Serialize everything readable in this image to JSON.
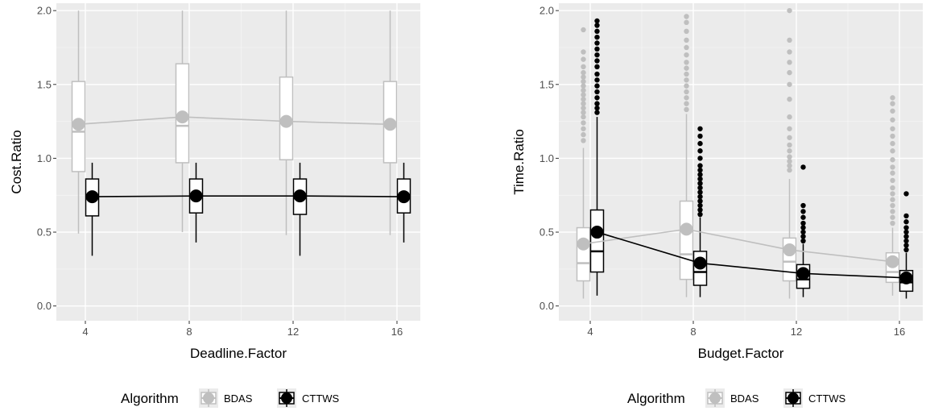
{
  "chart_data": [
    {
      "type": "box",
      "xlabel": "Deadline.Factor",
      "ylabel": "Cost.Ratio",
      "categories": [
        "4",
        "8",
        "12",
        "16"
      ],
      "ylim": [
        -0.1,
        2.05
      ],
      "yticks": [
        "0.0",
        "0.5",
        "1.0",
        "1.5",
        "2.0"
      ],
      "grid": true,
      "series": [
        {
          "name": "BDAS",
          "color": "#bfbfbf",
          "boxes": [
            {
              "min": 0.49,
              "q1": 0.91,
              "median": 1.18,
              "q3": 1.52,
              "max": 2.0,
              "mean": 1.23,
              "outliers": []
            },
            {
              "min": 0.5,
              "q1": 0.97,
              "median": 1.22,
              "q3": 1.64,
              "max": 2.0,
              "mean": 1.28,
              "outliers": []
            },
            {
              "min": 0.48,
              "q1": 0.99,
              "median": 1.24,
              "q3": 1.55,
              "max": 2.0,
              "mean": 1.25,
              "outliers": []
            },
            {
              "min": 0.48,
              "q1": 0.97,
              "median": 1.22,
              "q3": 1.52,
              "max": 2.0,
              "mean": 1.23,
              "outliers": []
            }
          ]
        },
        {
          "name": "CTTWS",
          "color": "#000000",
          "boxes": [
            {
              "min": 0.34,
              "q1": 0.61,
              "median": 0.73,
              "q3": 0.86,
              "max": 0.97,
              "mean": 0.74,
              "outliers": []
            },
            {
              "min": 0.43,
              "q1": 0.63,
              "median": 0.74,
              "q3": 0.86,
              "max": 0.97,
              "mean": 0.745,
              "outliers": []
            },
            {
              "min": 0.34,
              "q1": 0.62,
              "median": 0.73,
              "q3": 0.86,
              "max": 0.97,
              "mean": 0.745,
              "outliers": []
            },
            {
              "min": 0.43,
              "q1": 0.63,
              "median": 0.74,
              "q3": 0.86,
              "max": 0.97,
              "mean": 0.74,
              "outliers": []
            }
          ]
        }
      ]
    },
    {
      "type": "box",
      "xlabel": "Budget.Factor",
      "ylabel": "Time.Ratio",
      "categories": [
        "4",
        "8",
        "12",
        "16"
      ],
      "ylim": [
        -0.1,
        2.05
      ],
      "yticks": [
        "0.0",
        "0.5",
        "1.0",
        "1.5",
        "2.0"
      ],
      "grid": true,
      "series": [
        {
          "name": "BDAS",
          "color": "#bfbfbf",
          "boxes": [
            {
              "min": 0.05,
              "q1": 0.17,
              "median": 0.29,
              "q3": 0.53,
              "max": 1.07,
              "mean": 0.42,
              "outliers": [
                1.12,
                1.16,
                1.2,
                1.24,
                1.28,
                1.31,
                1.34,
                1.37,
                1.4,
                1.43,
                1.46,
                1.49,
                1.52,
                1.55,
                1.58,
                1.62,
                1.67,
                1.72,
                1.87
              ]
            },
            {
              "min": 0.06,
              "q1": 0.18,
              "median": 0.35,
              "q3": 0.71,
              "max": 1.3,
              "mean": 0.52,
              "outliers": [
                1.33,
                1.37,
                1.41,
                1.45,
                1.49,
                1.53,
                1.57,
                1.61,
                1.65,
                1.7,
                1.75,
                1.8,
                1.86,
                1.92,
                1.96
              ]
            },
            {
              "min": 0.05,
              "q1": 0.17,
              "median": 0.3,
              "q3": 0.46,
              "max": 0.86,
              "mean": 0.38,
              "outliers": [
                0.92,
                0.95,
                0.98,
                1.01,
                1.05,
                1.09,
                1.14,
                1.2,
                1.28,
                1.4,
                1.5,
                1.58,
                1.65,
                1.72,
                1.8,
                2.0
              ]
            },
            {
              "min": 0.07,
              "q1": 0.16,
              "median": 0.23,
              "q3": 0.36,
              "max": 0.53,
              "mean": 0.3,
              "outliers": [
                0.56,
                0.6,
                0.64,
                0.68,
                0.72,
                0.76,
                0.8,
                0.85,
                0.9,
                0.94,
                0.99,
                1.05,
                1.1,
                1.15,
                1.2,
                1.26,
                1.32,
                1.37,
                1.41
              ]
            }
          ]
        },
        {
          "name": "CTTWS",
          "color": "#000000",
          "boxes": [
            {
              "min": 0.07,
              "q1": 0.23,
              "median": 0.37,
              "q3": 0.65,
              "max": 1.28,
              "mean": 0.5,
              "outliers": [
                1.31,
                1.34,
                1.37,
                1.41,
                1.45,
                1.49,
                1.53,
                1.57,
                1.62,
                1.66,
                1.7,
                1.74,
                1.78,
                1.82,
                1.86,
                1.9,
                1.93
              ]
            },
            {
              "min": 0.06,
              "q1": 0.14,
              "median": 0.23,
              "q3": 0.37,
              "max": 0.6,
              "mean": 0.29,
              "outliers": [
                0.62,
                0.65,
                0.68,
                0.71,
                0.74,
                0.77,
                0.8,
                0.83,
                0.86,
                0.89,
                0.92,
                0.95,
                1.0,
                1.05,
                1.1,
                1.15,
                1.2
              ]
            },
            {
              "min": 0.06,
              "q1": 0.12,
              "median": 0.18,
              "q3": 0.28,
              "max": 0.42,
              "mean": 0.22,
              "outliers": [
                0.44,
                0.47,
                0.5,
                0.53,
                0.56,
                0.6,
                0.64,
                0.68,
                0.94
              ]
            },
            {
              "min": 0.05,
              "q1": 0.1,
              "median": 0.16,
              "q3": 0.24,
              "max": 0.36,
              "mean": 0.19,
              "outliers": [
                0.38,
                0.41,
                0.44,
                0.47,
                0.5,
                0.53,
                0.57,
                0.61,
                0.76
              ]
            }
          ]
        }
      ]
    }
  ],
  "legend": {
    "title": "Algorithm",
    "items": [
      {
        "label": "BDAS",
        "color": "#bfbfbf"
      },
      {
        "label": "CTTWS",
        "color": "#000000"
      }
    ]
  },
  "colors": {
    "panel": "#ebebeb",
    "grid_major": "#ffffff",
    "grid_minor": "#f5f5f5"
  }
}
